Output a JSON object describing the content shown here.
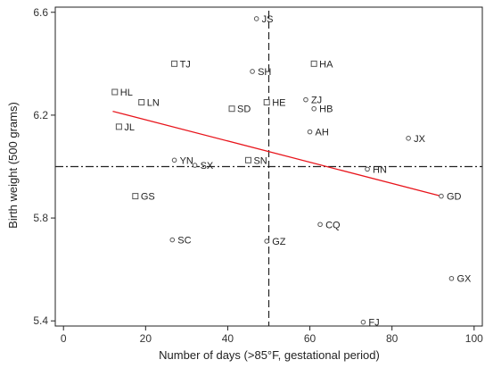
{
  "chart_data": {
    "type": "scatter",
    "xlabel": "Number of days (>85°F, gestational period)",
    "ylabel": "Birth weight (500 grams)",
    "xlim": [
      -2,
      102
    ],
    "ylim": [
      5.38,
      6.62
    ],
    "xticks": [
      0,
      20,
      40,
      60,
      80,
      100
    ],
    "yticks": [
      5.4,
      5.8,
      6.2,
      6.6
    ],
    "ytick_labels": [
      "5.4",
      "5.8",
      "6.2",
      "6.6"
    ],
    "grid": false,
    "reference_lines": {
      "vertical_x": 50,
      "horizontal_y": 6.0
    },
    "fit_line": {
      "color": "#e8141b",
      "x": [
        12,
        92
      ],
      "y": [
        6.215,
        5.885
      ]
    },
    "points": [
      {
        "label": "JS",
        "x": 47,
        "y": 6.575,
        "marker": "circle"
      },
      {
        "label": "TJ",
        "x": 27,
        "y": 6.4,
        "marker": "square"
      },
      {
        "label": "HA",
        "x": 61,
        "y": 6.4,
        "marker": "square"
      },
      {
        "label": "SH",
        "x": 46,
        "y": 6.37,
        "marker": "circle"
      },
      {
        "label": "HL",
        "x": 12.5,
        "y": 6.29,
        "marker": "square"
      },
      {
        "label": "LN",
        "x": 19,
        "y": 6.25,
        "marker": "square"
      },
      {
        "label": "HE",
        "x": 49.5,
        "y": 6.25,
        "marker": "square"
      },
      {
        "label": "ZJ",
        "x": 59,
        "y": 6.26,
        "marker": "circle"
      },
      {
        "label": "SD",
        "x": 41,
        "y": 6.225,
        "marker": "square"
      },
      {
        "label": "HB",
        "x": 61,
        "y": 6.225,
        "marker": "circle"
      },
      {
        "label": "JL",
        "x": 13.5,
        "y": 6.155,
        "marker": "square"
      },
      {
        "label": "AH",
        "x": 60,
        "y": 6.135,
        "marker": "circle"
      },
      {
        "label": "JX",
        "x": 84,
        "y": 6.11,
        "marker": "circle"
      },
      {
        "label": "YN",
        "x": 27,
        "y": 6.025,
        "marker": "circle"
      },
      {
        "label": "SX",
        "x": 32,
        "y": 6.005,
        "marker": "circle"
      },
      {
        "label": "SN",
        "x": 45,
        "y": 6.025,
        "marker": "square"
      },
      {
        "label": "HN",
        "x": 74,
        "y": 5.99,
        "marker": "circle"
      },
      {
        "label": "GS",
        "x": 17.5,
        "y": 5.885,
        "marker": "square"
      },
      {
        "label": "GD",
        "x": 92,
        "y": 5.885,
        "marker": "circle"
      },
      {
        "label": "CQ",
        "x": 62.5,
        "y": 5.775,
        "marker": "circle"
      },
      {
        "label": "SC",
        "x": 26.5,
        "y": 5.715,
        "marker": "circle"
      },
      {
        "label": "GZ",
        "x": 49.5,
        "y": 5.71,
        "marker": "circle"
      },
      {
        "label": "GX",
        "x": 94.5,
        "y": 5.565,
        "marker": "circle"
      },
      {
        "label": "FJ",
        "x": 73,
        "y": 5.395,
        "marker": "circle"
      }
    ],
    "colors": {
      "marker": "#555555",
      "axis": "#222222",
      "reference_line": "#222222"
    }
  }
}
